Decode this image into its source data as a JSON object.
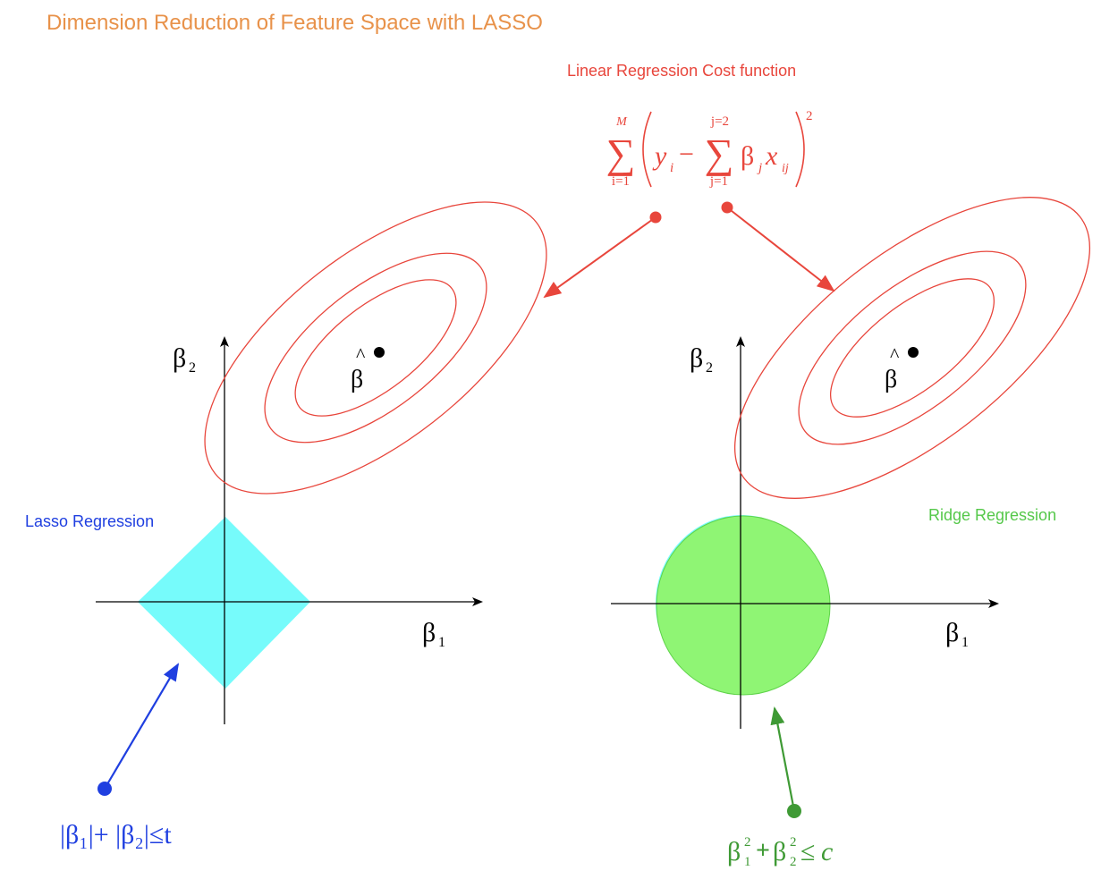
{
  "title": "Dimension Reduction of Feature Space with LASSO",
  "cost_function": {
    "caption": "Linear Regression Cost function",
    "sum_upper_outer": "M",
    "sum_lower_outer": "i=1",
    "y_term": "y",
    "y_sub": "i",
    "minus": "−",
    "sum_upper_inner": "j=2",
    "sum_lower_inner": "j=1",
    "beta": "β",
    "beta_sub": "j",
    "x_term": "x",
    "x_sub": "ij",
    "exponent": "2"
  },
  "lasso_panel": {
    "caption": "Lasso Regression",
    "axis_x": "β",
    "axis_x_sub": "1",
    "axis_y": "β",
    "axis_y_sub": "2",
    "beta_hat": "β",
    "hat": "^",
    "constraint": "|β₁|+ |β₂|≤t"
  },
  "ridge_panel": {
    "caption": "Ridge Regression",
    "axis_x": "β",
    "axis_x_sub": "1",
    "axis_y": "β",
    "axis_y_sub": "2",
    "beta_hat": "β",
    "hat": "^",
    "constraint_b1": "β",
    "constraint_sup1": "2",
    "constraint_sub1": "1",
    "constraint_plus": "+",
    "constraint_b2": "β",
    "constraint_sup2": "2",
    "constraint_sub2": "2",
    "constraint_leq": "≤",
    "constraint_c": "c"
  },
  "colors": {
    "title": "#e8924a",
    "cost": "#e8463c",
    "lasso": "#1f3fe0",
    "ridge": "#55c84a",
    "diamond_fill": "#76fbfb",
    "circle_fill": "#8ff574",
    "contour": "#e8463c"
  }
}
